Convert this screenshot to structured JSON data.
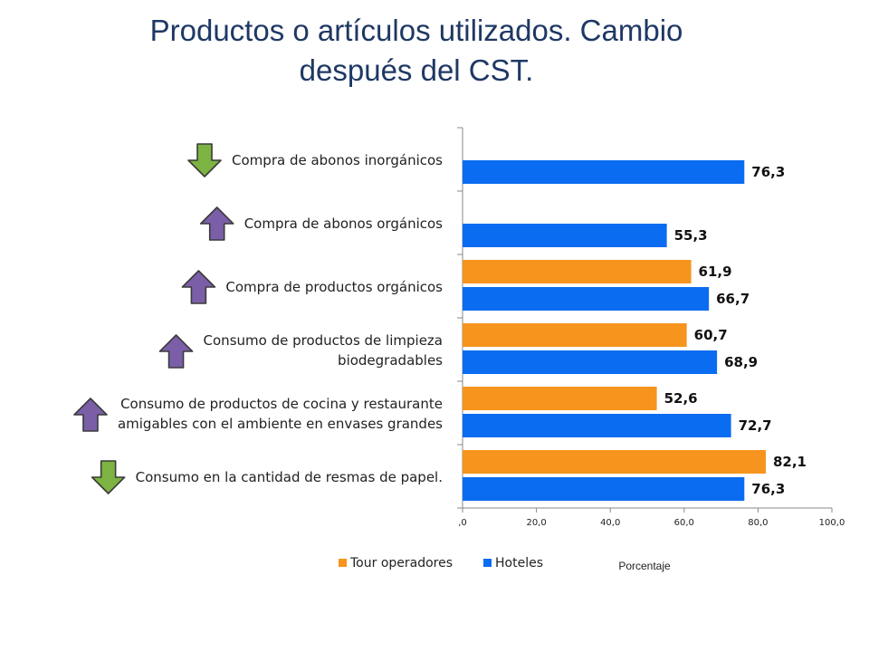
{
  "title": {
    "line1": "Productos o artículos utilizados. Cambio",
    "line2": "después del CST."
  },
  "colors": {
    "tour": "#F7941D",
    "hoteles": "#0A6CF0",
    "arrow_down": "#7DB342",
    "arrow_up": "#7A5FA8"
  },
  "chart_data": {
    "type": "bar",
    "orientation": "horizontal",
    "categories": [
      {
        "label_lines": [
          "Compra de abonos inorgánicos"
        ],
        "trend": "down"
      },
      {
        "label_lines": [
          "Compra de abonos orgánicos"
        ],
        "trend": "up"
      },
      {
        "label_lines": [
          "Compra de productos orgánicos"
        ],
        "trend": "up"
      },
      {
        "label_lines": [
          "Consumo de productos de limpieza",
          "biodegradables"
        ],
        "trend": "up"
      },
      {
        "label_lines": [
          "Consumo de productos de cocina y restaurante",
          "amigables con el ambiente en envases grandes"
        ],
        "trend": "up"
      },
      {
        "label_lines": [
          "Consumo en la cantidad de resmas de papel."
        ],
        "trend": "down"
      }
    ],
    "series": [
      {
        "name": "Tour operadores",
        "color": "#F7941D",
        "values": [
          null,
          null,
          61.9,
          60.7,
          52.6,
          82.1
        ],
        "labels": [
          "",
          "",
          "61,9",
          "60,7",
          "52,6",
          "82,1"
        ]
      },
      {
        "name": "Hoteles",
        "color": "#0A6CF0",
        "values": [
          76.3,
          55.3,
          66.7,
          68.9,
          72.7,
          76.3
        ],
        "labels": [
          "76,3",
          "55,3",
          "66,7",
          "68,9",
          "72,7",
          "76,3"
        ]
      }
    ],
    "xlim": [
      0,
      100
    ],
    "xticks": [
      0,
      20,
      40,
      60,
      80,
      100
    ],
    "xtick_labels": [
      ",0",
      "20,0",
      "40,0",
      "60,0",
      "80,0",
      "100,0"
    ],
    "xlabel": "Porcentaje",
    "legend": {
      "position": "bottom",
      "items": [
        "Tour operadores",
        "Hoteles"
      ]
    },
    "grid": false
  }
}
